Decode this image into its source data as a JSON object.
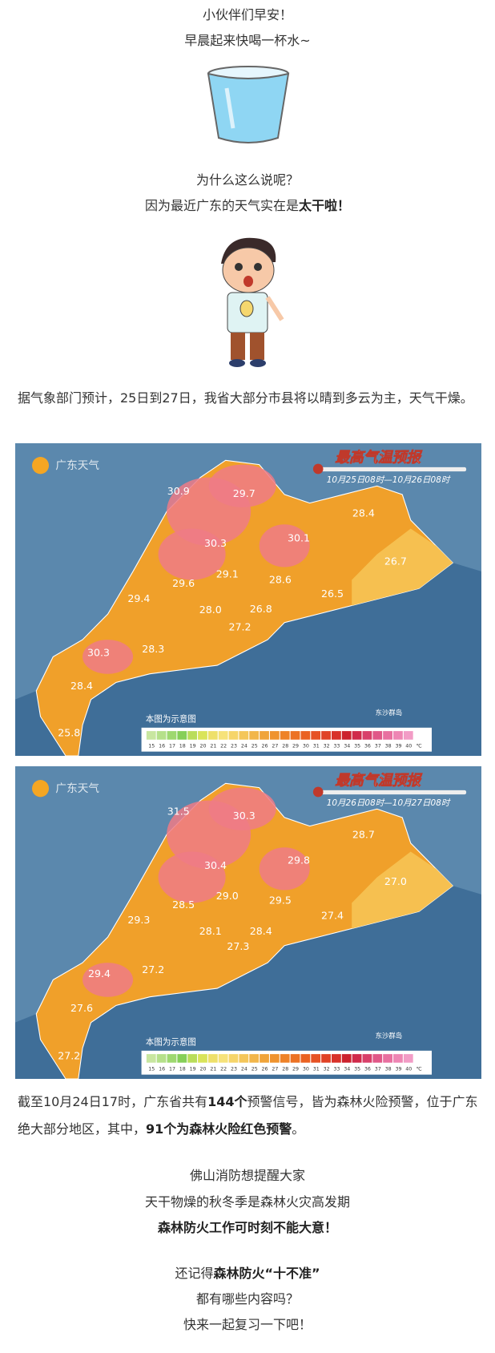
{
  "intro": {
    "line1": "小伙伴们早安！",
    "line2": "早晨起来快喝一杯水~"
  },
  "question": {
    "line1": "为什么这么说呢？",
    "line2_prefix": "因为最近广东的天气实在是",
    "line2_bold": "太干啦！"
  },
  "forecast_text": "据气象部门预计，25日到27日，我省大部分市县将以晴到多云为主，天气干燥。",
  "maps": [
    {
      "brand": "广东天气",
      "title": "最高气温预报",
      "period": "10月25日08时—10月26日08时",
      "labels": [
        "30.9",
        "29.7",
        "28.4",
        "30.3",
        "30.1",
        "26.7",
        "29.1",
        "29.6",
        "28.6",
        "29.4",
        "26.5",
        "28.0",
        "26.8",
        "27.2",
        "28.3",
        "30.3",
        "28.4",
        "25.8"
      ],
      "note": "本图为示意图",
      "island": "东沙群岛",
      "scale": [
        "15",
        "16",
        "17",
        "18",
        "19",
        "20",
        "21",
        "22",
        "23",
        "24",
        "25",
        "26",
        "27",
        "28",
        "29",
        "30",
        "31",
        "32",
        "33",
        "34",
        "35",
        "36",
        "37",
        "38",
        "39",
        "40"
      ],
      "unit": "℃"
    },
    {
      "brand": "广东天气",
      "title": "最高气温预报",
      "period": "10月26日08时—10月27日08时",
      "labels": [
        "31.5",
        "30.3",
        "28.7",
        "29.8",
        "30.4",
        "27.0",
        "29.0",
        "28.5",
        "29.5",
        "29.3",
        "27.4",
        "28.1",
        "28.4",
        "27.3",
        "27.2",
        "29.4",
        "27.6",
        "27.2"
      ],
      "note": "本图为示意图",
      "island": "东沙群岛",
      "scale": [
        "15",
        "16",
        "17",
        "18",
        "19",
        "20",
        "21",
        "22",
        "23",
        "24",
        "25",
        "26",
        "27",
        "28",
        "29",
        "30",
        "31",
        "32",
        "33",
        "34",
        "35",
        "36",
        "37",
        "38",
        "39",
        "40"
      ],
      "unit": "℃"
    }
  ],
  "warning": {
    "part1": "截至10月24日17时，广东省共有",
    "part2_bold": "144个",
    "part3": "预警信号，皆为森林火险预警，位于广东绝大部分地区，其中，",
    "part4_bold": "91个为森林火险红色预警",
    "part5": "。"
  },
  "reminder": {
    "line1": "佛山消防想提醒大家",
    "line2": "天干物燥的秋冬季是森林火灾高发期",
    "line3_bold": "森林防火工作可时刻不能大意！"
  },
  "closing": {
    "line1_prefix": "还记得",
    "line1_bold1": "森林防火",
    "line1_bold2": "“十不准”",
    "line2": "都有哪些内容吗？",
    "line3": "快来一起复习一下吧！"
  }
}
